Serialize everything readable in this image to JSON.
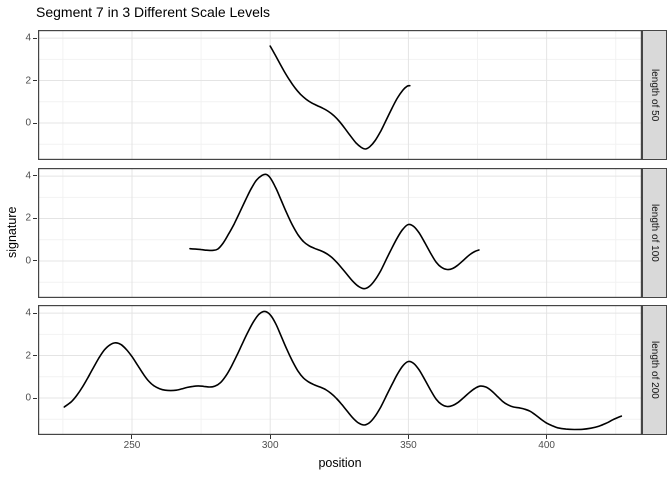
{
  "title": "Segment 7 in 3 Different Scale Levels",
  "colors": {
    "line": "#000000",
    "grid_major": "#e4e4e4",
    "grid_minor": "#f2f2f2",
    "panel_border": "#454545",
    "panel_bg": "#ffffff",
    "strip_bg": "#d9d9d9",
    "tick_text": "#4d4d4d"
  },
  "chart_data": {
    "type": "line",
    "title": "Segment 7 in 3 Different Scale Levels",
    "xlabel": "position",
    "ylabel": "signature",
    "xlim": [
      216,
      434.5
    ],
    "ylim": [
      -1.74,
      4.38
    ],
    "x_ticks": [
      250,
      300,
      350,
      400
    ],
    "x_minor": [
      225,
      275,
      325,
      375,
      425
    ],
    "y_ticks": [
      4,
      2,
      0
    ],
    "y_minor": [
      3,
      1,
      -1
    ],
    "grid": true,
    "legend": "none",
    "facets": [
      {
        "label": "length of 50",
        "points": [
          [
            300,
            3.62
          ],
          [
            301.5,
            3.28
          ],
          [
            303,
            2.92
          ],
          [
            305,
            2.45
          ],
          [
            307,
            2.02
          ],
          [
            309,
            1.65
          ],
          [
            311,
            1.35
          ],
          [
            313,
            1.12
          ],
          [
            315,
            0.95
          ],
          [
            317,
            0.82
          ],
          [
            319,
            0.7
          ],
          [
            321,
            0.55
          ],
          [
            323,
            0.35
          ],
          [
            325,
            0.08
          ],
          [
            327,
            -0.25
          ],
          [
            329,
            -0.6
          ],
          [
            331,
            -0.93
          ],
          [
            333,
            -1.15
          ],
          [
            334.5,
            -1.22
          ],
          [
            336,
            -1.12
          ],
          [
            338,
            -0.82
          ],
          [
            340,
            -0.38
          ],
          [
            342,
            0.15
          ],
          [
            344,
            0.68
          ],
          [
            346,
            1.18
          ],
          [
            348,
            1.55
          ],
          [
            349.5,
            1.73
          ],
          [
            350.5,
            1.76
          ]
        ]
      },
      {
        "label": "length of 100",
        "points": [
          [
            271,
            0.58
          ],
          [
            273,
            0.56
          ],
          [
            275,
            0.54
          ],
          [
            277,
            0.51
          ],
          [
            279,
            0.5
          ],
          [
            281,
            0.56
          ],
          [
            283,
            0.85
          ],
          [
            285,
            1.28
          ],
          [
            287,
            1.76
          ],
          [
            289,
            2.3
          ],
          [
            291,
            2.85
          ],
          [
            293,
            3.38
          ],
          [
            295,
            3.8
          ],
          [
            297,
            4.03
          ],
          [
            298.5,
            4.08
          ],
          [
            300,
            3.92
          ],
          [
            302,
            3.45
          ],
          [
            304,
            2.85
          ],
          [
            306,
            2.25
          ],
          [
            308,
            1.7
          ],
          [
            310,
            1.25
          ],
          [
            312,
            0.92
          ],
          [
            314,
            0.72
          ],
          [
            316,
            0.6
          ],
          [
            318,
            0.5
          ],
          [
            320,
            0.38
          ],
          [
            322,
            0.2
          ],
          [
            324,
            -0.05
          ],
          [
            326,
            -0.35
          ],
          [
            328,
            -0.66
          ],
          [
            330,
            -0.97
          ],
          [
            332,
            -1.2
          ],
          [
            334,
            -1.3
          ],
          [
            336,
            -1.18
          ],
          [
            338,
            -0.88
          ],
          [
            340,
            -0.45
          ],
          [
            342,
            0.08
          ],
          [
            344,
            0.6
          ],
          [
            346,
            1.1
          ],
          [
            348,
            1.5
          ],
          [
            350,
            1.72
          ],
          [
            352,
            1.62
          ],
          [
            354,
            1.3
          ],
          [
            356,
            0.85
          ],
          [
            358,
            0.38
          ],
          [
            360,
            -0.05
          ],
          [
            362,
            -0.3
          ],
          [
            364,
            -0.4
          ],
          [
            366,
            -0.35
          ],
          [
            368,
            -0.18
          ],
          [
            370,
            0.05
          ],
          [
            372,
            0.28
          ],
          [
            374,
            0.45
          ],
          [
            375.5,
            0.52
          ]
        ]
      },
      {
        "label": "length of 200",
        "points": [
          [
            225.5,
            -0.42
          ],
          [
            228,
            -0.18
          ],
          [
            230,
            0.12
          ],
          [
            232,
            0.5
          ],
          [
            234,
            0.95
          ],
          [
            236,
            1.42
          ],
          [
            238,
            1.88
          ],
          [
            240,
            2.26
          ],
          [
            242,
            2.5
          ],
          [
            244,
            2.6
          ],
          [
            246,
            2.52
          ],
          [
            248,
            2.28
          ],
          [
            250,
            1.95
          ],
          [
            252,
            1.55
          ],
          [
            254,
            1.15
          ],
          [
            256,
            0.8
          ],
          [
            258,
            0.57
          ],
          [
            260,
            0.44
          ],
          [
            262,
            0.37
          ],
          [
            264,
            0.35
          ],
          [
            266,
            0.37
          ],
          [
            268,
            0.43
          ],
          [
            270,
            0.5
          ],
          [
            272,
            0.55
          ],
          [
            274,
            0.57
          ],
          [
            276,
            0.55
          ],
          [
            278,
            0.52
          ],
          [
            280,
            0.56
          ],
          [
            282,
            0.72
          ],
          [
            284,
            1.05
          ],
          [
            286,
            1.5
          ],
          [
            288,
            2.02
          ],
          [
            290,
            2.58
          ],
          [
            292,
            3.12
          ],
          [
            294,
            3.6
          ],
          [
            296,
            3.95
          ],
          [
            298,
            4.08
          ],
          [
            300,
            3.92
          ],
          [
            302,
            3.5
          ],
          [
            304,
            2.9
          ],
          [
            306,
            2.3
          ],
          [
            308,
            1.75
          ],
          [
            310,
            1.28
          ],
          [
            312,
            0.95
          ],
          [
            314,
            0.75
          ],
          [
            316,
            0.62
          ],
          [
            318,
            0.52
          ],
          [
            320,
            0.4
          ],
          [
            322,
            0.22
          ],
          [
            324,
            -0.02
          ],
          [
            326,
            -0.32
          ],
          [
            328,
            -0.64
          ],
          [
            330,
            -0.95
          ],
          [
            332,
            -1.18
          ],
          [
            334,
            -1.27
          ],
          [
            336,
            -1.15
          ],
          [
            338,
            -0.85
          ],
          [
            340,
            -0.42
          ],
          [
            342,
            0.1
          ],
          [
            344,
            0.62
          ],
          [
            346,
            1.12
          ],
          [
            348,
            1.52
          ],
          [
            350,
            1.72
          ],
          [
            352,
            1.62
          ],
          [
            354,
            1.3
          ],
          [
            356,
            0.85
          ],
          [
            358,
            0.38
          ],
          [
            360,
            -0.05
          ],
          [
            362,
            -0.3
          ],
          [
            364,
            -0.4
          ],
          [
            366,
            -0.35
          ],
          [
            368,
            -0.2
          ],
          [
            370,
            0.02
          ],
          [
            372,
            0.25
          ],
          [
            374,
            0.45
          ],
          [
            376,
            0.56
          ],
          [
            378,
            0.52
          ],
          [
            380,
            0.35
          ],
          [
            382,
            0.1
          ],
          [
            384,
            -0.15
          ],
          [
            386,
            -0.32
          ],
          [
            388,
            -0.42
          ],
          [
            390,
            -0.46
          ],
          [
            392,
            -0.52
          ],
          [
            394,
            -0.62
          ],
          [
            396,
            -0.8
          ],
          [
            398,
            -1.0
          ],
          [
            400,
            -1.18
          ],
          [
            402,
            -1.3
          ],
          [
            404,
            -1.4
          ],
          [
            407,
            -1.46
          ],
          [
            410,
            -1.48
          ],
          [
            413,
            -1.47
          ],
          [
            416,
            -1.42
          ],
          [
            419,
            -1.32
          ],
          [
            422,
            -1.16
          ],
          [
            424,
            -1.02
          ],
          [
            427,
            -0.85
          ]
        ]
      }
    ]
  }
}
